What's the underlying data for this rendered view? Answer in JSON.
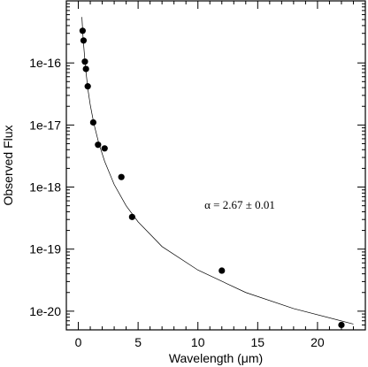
{
  "chart_data": {
    "type": "scatter",
    "title": "",
    "xlabel": "Wavelength (μm)",
    "ylabel": "Observed Flux",
    "x_scale": "linear",
    "y_scale": "log",
    "xlim": [
      -1,
      24
    ],
    "ylim": [
      5e-21,
      1e-15
    ],
    "x_ticks": [
      0,
      5,
      10,
      15,
      20
    ],
    "x_tick_labels": [
      "0",
      "5",
      "10",
      "15",
      "20"
    ],
    "y_ticks": [
      1e-20,
      1e-19,
      1e-18,
      1e-17,
      1e-16
    ],
    "y_tick_labels": [
      "1e-20",
      "1e-19",
      "1e-18",
      "1e-17",
      "1e-16"
    ],
    "grid": false,
    "series": [
      {
        "kind": "points",
        "marker": "filled-circle",
        "color": "#000000",
        "x": [
          0.36,
          0.44,
          0.55,
          0.64,
          0.79,
          1.25,
          1.65,
          2.2,
          3.6,
          4.5,
          12,
          22
        ],
        "y": [
          3.3e-16,
          2.3e-16,
          1.05e-16,
          8e-17,
          4.2e-17,
          1.1e-17,
          4.8e-18,
          4.2e-18,
          1.45e-18,
          3.3e-19,
          4.5e-20,
          6e-21
        ]
      },
      {
        "kind": "fit-line",
        "color": "#000000",
        "x": [
          0.3,
          0.4,
          0.6,
          0.8,
          1.0,
          1.3,
          1.7,
          2.2,
          3.0,
          4.0,
          5.0,
          7.0,
          10.0,
          14.0,
          18.0,
          23.0
        ],
        "y": [
          5.5e-16,
          2.5e-16,
          8.5e-17,
          3.8e-17,
          2.1e-17,
          1.05e-17,
          5.2e-18,
          2.6e-18,
          1.1e-18,
          5e-19,
          2.75e-19,
          1.1e-19,
          4.6e-20,
          2e-20,
          1.1e-20,
          6.2e-21
        ]
      }
    ],
    "annotations": [
      {
        "text": "α = 2.67 ± 0.01",
        "x": 10.5,
        "y": 1e-18
      }
    ]
  }
}
